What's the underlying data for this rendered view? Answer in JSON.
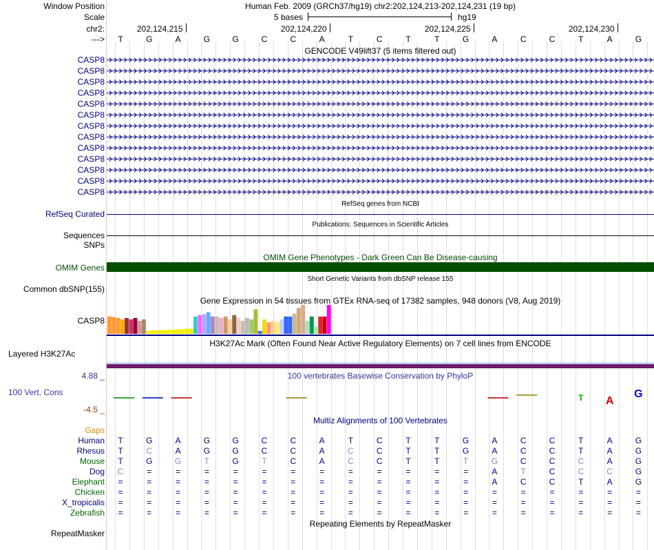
{
  "header": {
    "window_position_label": "Window Position",
    "window_position_value": "Human Feb. 2009 (GRCh37/hg19)   chr2:202,124,213-202,124,231 (19 bp)",
    "scale_label": "Scale",
    "scale_value": "5 bases",
    "assembly": "hg19",
    "chrom_label": "chr2:",
    "strand_label": "--->",
    "positions": [
      "202,124,215",
      "202,124,220",
      "202,124,225",
      "202,124,230"
    ]
  },
  "sequence": [
    "T",
    "G",
    "A",
    "G",
    "G",
    "C",
    "C",
    "A",
    "T",
    "C",
    "T",
    "T",
    "G",
    "A",
    "C",
    "C",
    "T",
    "A",
    "G"
  ],
  "gencode": {
    "title": "GENCODE V49lift37 (5 items filtered out)",
    "rows": [
      "CASP8",
      "CASP8",
      "CASP8",
      "CASP8",
      "CASP8",
      "CASP8",
      "CASP8",
      "CASP8",
      "CASP8",
      "CASP8",
      "CASP8",
      "CASP8",
      "CASP8"
    ]
  },
  "refseq": {
    "label": "RefSeq Curated",
    "title": "RefSeq genes from NCBI"
  },
  "publications": {
    "title": "Publications: Sequences in Scientific Articles",
    "label": "Sequences"
  },
  "snps": {
    "label": "SNPs"
  },
  "omim": {
    "title": "OMIM Gene Phenotypes - Dark Green Can Be Disease-causing",
    "label": "OMIM Genes",
    "color": "#004d00"
  },
  "dbsnp": {
    "title": "Short Genetic Variants from dbSNP release 155",
    "label": "Common dbSNP(155)"
  },
  "gtex": {
    "title": "Gene Expression in 54 tissues from GTEx RNA-seq of 17382 samples, 948 donors (V8, Aug 2019)",
    "label": "CASP8",
    "bars": [
      {
        "v": 0.6,
        "c": "#ff9933"
      },
      {
        "v": 0.58,
        "c": "#ff9933"
      },
      {
        "v": 0.55,
        "c": "#ff9933"
      },
      {
        "v": 0.5,
        "c": "#ffaa00"
      },
      {
        "v": 0.55,
        "c": "#993333"
      },
      {
        "v": 0.5,
        "c": "#cc3366"
      },
      {
        "v": 0.55,
        "c": "#990033"
      },
      {
        "v": 0.45,
        "c": "#cc9999"
      },
      {
        "v": 0.5,
        "c": "#aa8866"
      },
      {
        "v": 0.1,
        "c": "#eeee00"
      },
      {
        "v": 0.12,
        "c": "#eeee00"
      },
      {
        "v": 0.12,
        "c": "#eeee00"
      },
      {
        "v": 0.13,
        "c": "#eeee00"
      },
      {
        "v": 0.13,
        "c": "#eeee00"
      },
      {
        "v": 0.14,
        "c": "#eeee00"
      },
      {
        "v": 0.15,
        "c": "#eeee00"
      },
      {
        "v": 0.15,
        "c": "#eeee00"
      },
      {
        "v": 0.16,
        "c": "#eeee00"
      },
      {
        "v": 0.18,
        "c": "#eeee00"
      },
      {
        "v": 0.18,
        "c": "#eeee00"
      },
      {
        "v": 0.6,
        "c": "#33cccc"
      },
      {
        "v": 0.65,
        "c": "#ff66ff"
      },
      {
        "v": 0.68,
        "c": "#aaaaff"
      },
      {
        "v": 0.75,
        "c": "#66aaff"
      },
      {
        "v": 0.6,
        "c": "#aa88cc"
      },
      {
        "v": 0.6,
        "c": "#ccbbaa"
      },
      {
        "v": 0.55,
        "c": "#eeaacc"
      },
      {
        "v": 0.6,
        "c": "#cc9966"
      },
      {
        "v": 0.5,
        "c": "#ffcc99"
      },
      {
        "v": 0.65,
        "c": "#886644"
      },
      {
        "v": 0.55,
        "c": "#eecccc"
      },
      {
        "v": 0.45,
        "c": "#ccbbaa"
      },
      {
        "v": 0.55,
        "c": "#bbbbbb"
      },
      {
        "v": 0.5,
        "c": "#99cc66"
      },
      {
        "v": 0.85,
        "c": "#aabb33"
      },
      {
        "v": 0.1,
        "c": "#5566cc"
      },
      {
        "v": 0.5,
        "c": "#eedd00"
      },
      {
        "v": 0.4,
        "c": "#ff9966"
      },
      {
        "v": 0.45,
        "c": "#ffcc99"
      },
      {
        "v": 0.4,
        "c": "#ffee66"
      },
      {
        "v": 0.5,
        "c": "#ccccff"
      },
      {
        "v": 0.6,
        "c": "#3366ff"
      },
      {
        "v": 0.6,
        "c": "#3366ff"
      },
      {
        "v": 0.7,
        "c": "#ccbb88"
      },
      {
        "v": 0.9,
        "c": "#ccaa88"
      },
      {
        "v": 1.0,
        "c": "#ddaa88"
      },
      {
        "v": 0.45,
        "c": "#aaddcc"
      },
      {
        "v": 0.6,
        "c": "#009944"
      },
      {
        "v": 0.25,
        "c": "#aaeeaa"
      },
      {
        "v": 0.6,
        "c": "#dd2233"
      },
      {
        "v": 0.6,
        "c": "#cc0000"
      },
      {
        "v": 1.0,
        "c": "#ff00ff"
      }
    ]
  },
  "h3k27ac": {
    "title": "H3K27Ac Mark (Often Found Near Active Regulatory Elements) on 7 cell lines from ENCODE",
    "label": "Layered H3K27Ac",
    "color": "#6a1b6a"
  },
  "phylop": {
    "title": "100 vertebrates Basewise Conservation by PhyloP",
    "label": "100 Vert. Cons",
    "max": "4.88 _",
    "min": "-4.5 _"
  },
  "multiz": {
    "title": "Multiz Alignments of 100 Vertebrates",
    "gaps_label": "Gaps",
    "species": [
      {
        "name": "Human",
        "color": "#000080",
        "seq": [
          "T",
          "G",
          "A",
          "G",
          "G",
          "C",
          "C",
          "A",
          "T",
          "C",
          "T",
          "T",
          "G",
          "A",
          "C",
          "C",
          "T",
          "A",
          "G"
        ]
      },
      {
        "name": "Rhesus",
        "color": "#000080",
        "seq": [
          "T",
          "C",
          "A",
          "G",
          "G",
          "C",
          "C",
          "A",
          "C",
          "C",
          "T",
          "T",
          "G",
          "A",
          "C",
          "C",
          "T",
          "A",
          "G"
        ]
      },
      {
        "name": "Mouse",
        "color": "#006400",
        "seq": [
          "T",
          "G",
          "G",
          "T",
          "G",
          "T",
          "C",
          "A",
          "C",
          "C",
          "T",
          "T",
          "T",
          "G",
          "C",
          "C",
          "C",
          "A",
          "G"
        ]
      },
      {
        "name": "Dog",
        "color": "#000080",
        "seq": [
          "C",
          "=",
          "=",
          "=",
          "=",
          "=",
          "=",
          "=",
          "=",
          "=",
          "=",
          "=",
          "=",
          "A",
          "T",
          "C",
          "C",
          "C",
          "G"
        ]
      },
      {
        "name": "Elephant",
        "color": "#006400",
        "seq": [
          "=",
          "=",
          "=",
          "=",
          "=",
          "=",
          "=",
          "=",
          "=",
          "=",
          "=",
          "=",
          "=",
          "A",
          "C",
          "C",
          "T",
          "A",
          "G"
        ]
      },
      {
        "name": "Chicken",
        "color": "#006400",
        "seq": [
          "=",
          "=",
          "=",
          "=",
          "=",
          "=",
          "=",
          "=",
          "=",
          "=",
          "=",
          "=",
          "=",
          "=",
          "=",
          "=",
          "=",
          "=",
          "="
        ]
      },
      {
        "name": "X_tropicalis",
        "color": "#000080",
        "seq": [
          "=",
          "=",
          "=",
          "=",
          "=",
          "=",
          "=",
          "=",
          "=",
          "=",
          "=",
          "=",
          "=",
          "=",
          "=",
          "=",
          "=",
          "=",
          "="
        ]
      },
      {
        "name": "Zebrafish",
        "color": "#006400",
        "seq": [
          "=",
          "=",
          "=",
          "=",
          "=",
          "=",
          "=",
          "=",
          "=",
          "=",
          "=",
          "=",
          "=",
          "=",
          "=",
          "=",
          "=",
          "=",
          "="
        ]
      }
    ]
  },
  "repeatmasker": {
    "title": "Repeating Elements by RepeatMasker",
    "label": "RepeatMasker"
  }
}
